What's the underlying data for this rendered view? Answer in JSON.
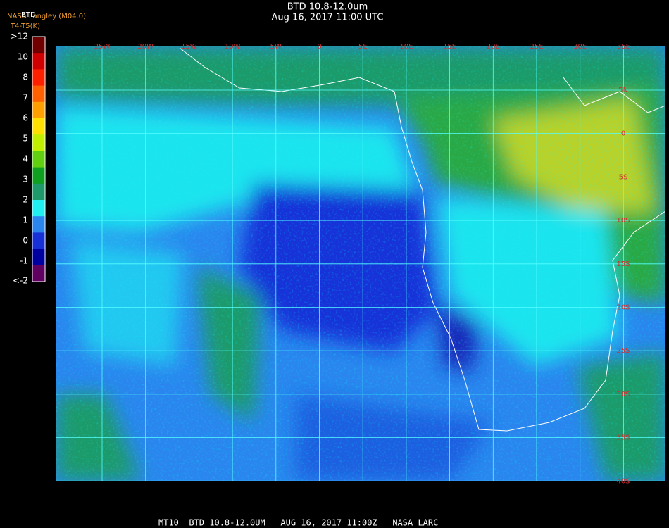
{
  "header": {
    "source": "NASA Langley (M04.0)",
    "product": "BTD",
    "units": "T4-T5(K)",
    "title": "BTD 10.8-12.0um",
    "datetime": "Aug 16, 2017 11:00 UTC"
  },
  "legend": {
    "labels": [
      ">12",
      "10",
      "8",
      "7",
      "6",
      "5",
      "4",
      "3",
      "2",
      "1",
      "0",
      "-1",
      "<-2"
    ]
  },
  "map": {
    "longitude_labels": [
      "25W",
      "20W",
      "15W",
      "10W",
      "5W",
      "0",
      "5E",
      "10E",
      "15E",
      "20E",
      "25E",
      "30E",
      "35E"
    ],
    "latitude_labels": [
      "5N",
      "0",
      "5S",
      "10S",
      "15S",
      "20S",
      "25S",
      "30S",
      "35S",
      "40S"
    ]
  },
  "footer": {
    "caption": "MT10  BTD 10.8-12.0UM   AUG 16, 2017 11:00Z   NASA LARC"
  }
}
